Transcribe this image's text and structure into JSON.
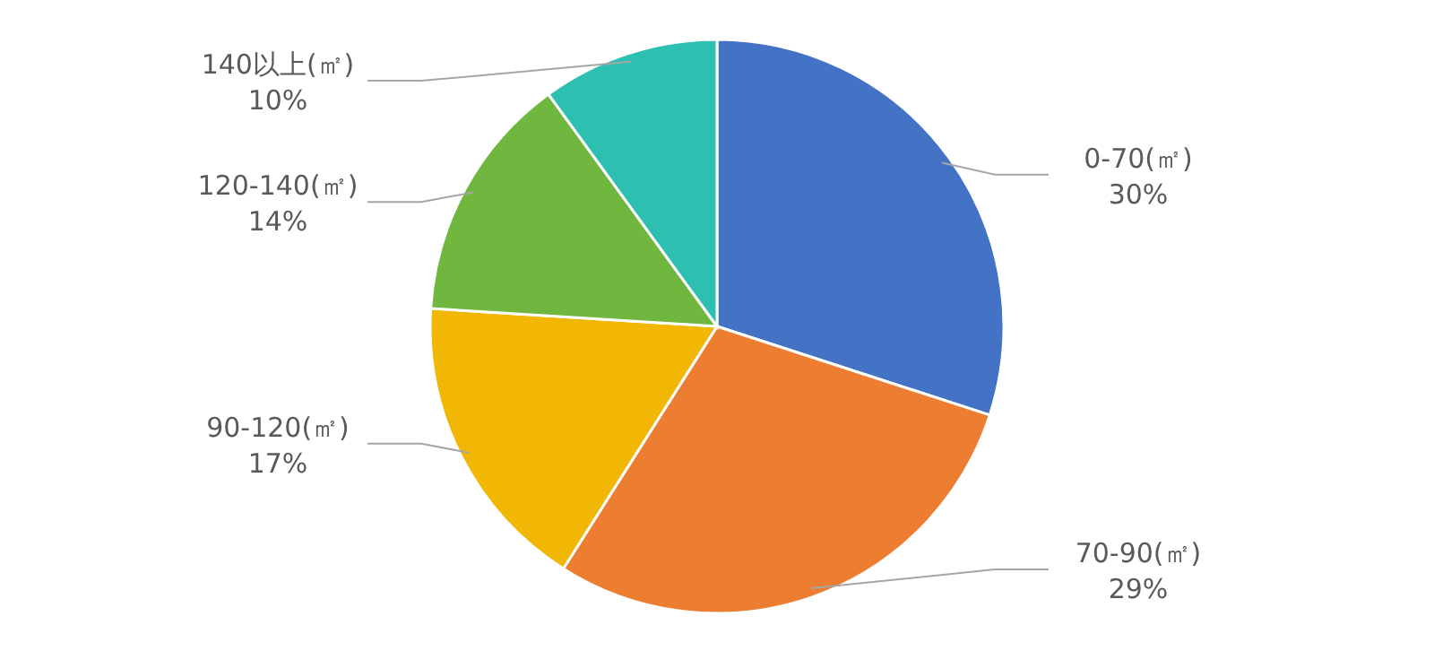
{
  "chart_data": {
    "type": "pie",
    "categories": [
      "0-70(㎡)",
      "70-90(㎡)",
      "90-120(㎡)",
      "120-140(㎡)",
      "140以上(㎡)"
    ],
    "values": [
      30,
      29,
      17,
      14,
      10
    ],
    "colors": [
      "#4472c4",
      "#ed7d31",
      "#f2b705",
      "#70b73f",
      "#2dbfb0"
    ],
    "value_labels": [
      "30%",
      "29%",
      "17%",
      "14%",
      "10%"
    ]
  }
}
